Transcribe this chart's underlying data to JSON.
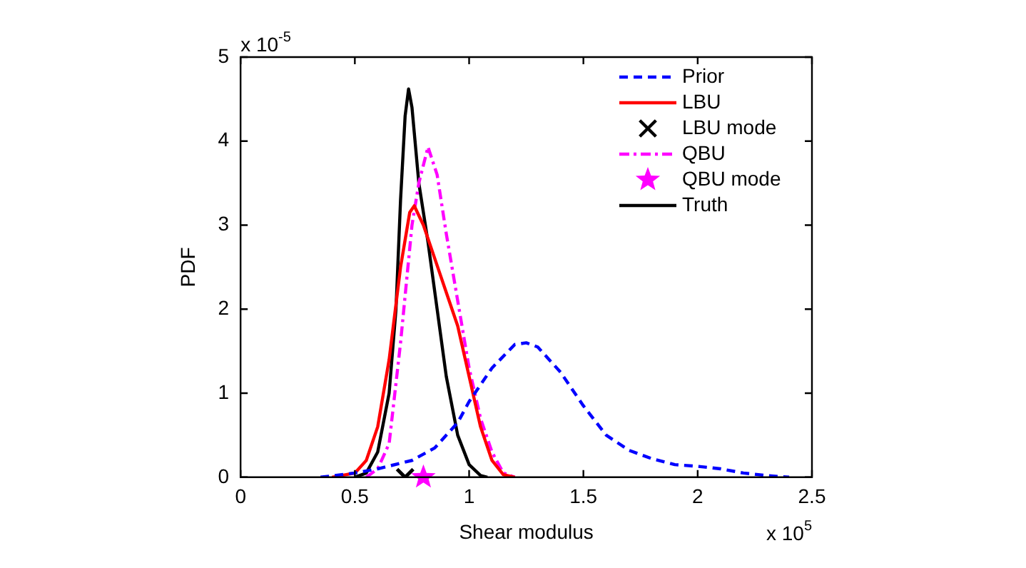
{
  "chart_data": {
    "type": "line",
    "xlabel": "Shear modulus",
    "ylabel": "PDF",
    "annotations": [
      "x 10$^{-5}$",
      "x 10$^{5}$"
    ],
    "xlim": [
      0,
      2.5
    ],
    "xticks": [
      0,
      0.5,
      1,
      1.5,
      2,
      2.5
    ],
    "ylim": [
      0,
      5
    ],
    "yticks": [
      0,
      1,
      2,
      3,
      4,
      5
    ],
    "grid": false,
    "legend": "top right",
    "series": [
      {
        "name": "Prior",
        "color": "#0000ff",
        "line_style": "dashed",
        "x": [
          0.35,
          0.5,
          0.6,
          0.75,
          0.85,
          0.95,
          1.0,
          1.1,
          1.2,
          1.25,
          1.3,
          1.4,
          1.5,
          1.6,
          1.7,
          1.8,
          1.9,
          2.0,
          2.1,
          2.2,
          2.3,
          2.4
        ],
        "values": [
          0,
          0.05,
          0.1,
          0.2,
          0.35,
          0.65,
          0.9,
          1.3,
          1.58,
          1.6,
          1.55,
          1.25,
          0.85,
          0.5,
          0.32,
          0.22,
          0.15,
          0.13,
          0.1,
          0.05,
          0.02,
          0
        ]
      },
      {
        "name": "LBU",
        "color": "#ff0000",
        "line_style": "solid",
        "x": [
          0.4,
          0.5,
          0.55,
          0.6,
          0.65,
          0.7,
          0.74,
          0.76,
          0.8,
          0.85,
          0.9,
          0.95,
          1.0,
          1.05,
          1.1,
          1.15,
          1.2
        ],
        "values": [
          0,
          0.05,
          0.2,
          0.6,
          1.4,
          2.5,
          3.15,
          3.23,
          3.0,
          2.6,
          2.2,
          1.8,
          1.2,
          0.6,
          0.2,
          0.03,
          0
        ]
      },
      {
        "name": "LBU mode",
        "type": "scatter",
        "marker": "cross",
        "color": "#000000",
        "x": [
          0.72
        ],
        "values": [
          0
        ]
      },
      {
        "name": "QBU",
        "color": "#ff00ff",
        "line_style": "dotted",
        "x": [
          0.55,
          0.6,
          0.65,
          0.7,
          0.75,
          0.78,
          0.82,
          0.86,
          0.9,
          0.95,
          1.0,
          1.05,
          1.1,
          1.15,
          1.2
        ],
        "values": [
          0,
          0.1,
          0.4,
          1.6,
          3.0,
          3.5,
          3.93,
          3.6,
          2.9,
          2.1,
          1.3,
          0.7,
          0.3,
          0.05,
          0
        ]
      },
      {
        "name": "QBU mode",
        "type": "scatter",
        "marker": "star",
        "color": "#ff00ff",
        "x": [
          0.8
        ],
        "values": [
          0
        ]
      },
      {
        "name": "Truth",
        "color": "#000000",
        "line_style": "solid",
        "x": [
          0.5,
          0.55,
          0.6,
          0.65,
          0.68,
          0.7,
          0.72,
          0.735,
          0.75,
          0.78,
          0.82,
          0.86,
          0.9,
          0.95,
          1.0,
          1.05,
          1.08
        ],
        "values": [
          0,
          0.05,
          0.3,
          1.0,
          2.0,
          3.3,
          4.3,
          4.62,
          4.4,
          3.5,
          2.8,
          2.0,
          1.2,
          0.5,
          0.15,
          0.02,
          0
        ]
      }
    ]
  }
}
